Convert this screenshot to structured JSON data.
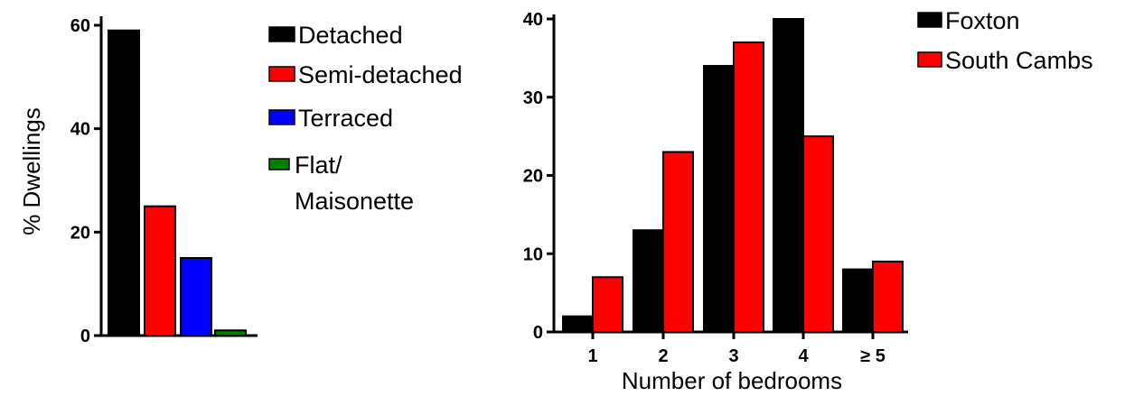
{
  "chart_data": [
    {
      "type": "bar",
      "title": "",
      "xlabel": "",
      "ylabel": "% Dwellings",
      "ylim": [
        0,
        60
      ],
      "yticks": [
        "0",
        "20",
        "40",
        "60"
      ],
      "categories": [
        "Detached",
        "Semi-detached",
        "Terraced",
        "Flat/ Maisonette"
      ],
      "values": [
        59,
        25,
        15,
        1
      ],
      "colors": [
        "#000000",
        "#ff0000",
        "#0000ff",
        "#008000"
      ],
      "legend": {
        "position": "right",
        "entries": [
          {
            "lines": [
              "Detached"
            ],
            "color": "#000000"
          },
          {
            "lines": [
              "Semi-detached"
            ],
            "color": "#ff0000"
          },
          {
            "lines": [
              "Terraced"
            ],
            "color": "#0000ff"
          },
          {
            "lines": [
              "Flat/",
              "Maisonette"
            ],
            "color": "#008000"
          }
        ]
      }
    },
    {
      "type": "bar",
      "title": "",
      "xlabel": "Number of bedrooms",
      "ylabel": "",
      "ylim": [
        0,
        40
      ],
      "yticks": [
        "0",
        "10",
        "20",
        "30",
        "40"
      ],
      "categories": [
        "1",
        "2",
        "3",
        "4",
        "≥ 5"
      ],
      "series": [
        {
          "name": "Foxton",
          "color": "#000000",
          "values": [
            2,
            13,
            34,
            40,
            8
          ]
        },
        {
          "name": "South Cambs",
          "color": "#ff0000",
          "values": [
            7,
            23,
            37,
            25,
            9
          ]
        }
      ],
      "legend": {
        "position": "top-right"
      }
    }
  ]
}
